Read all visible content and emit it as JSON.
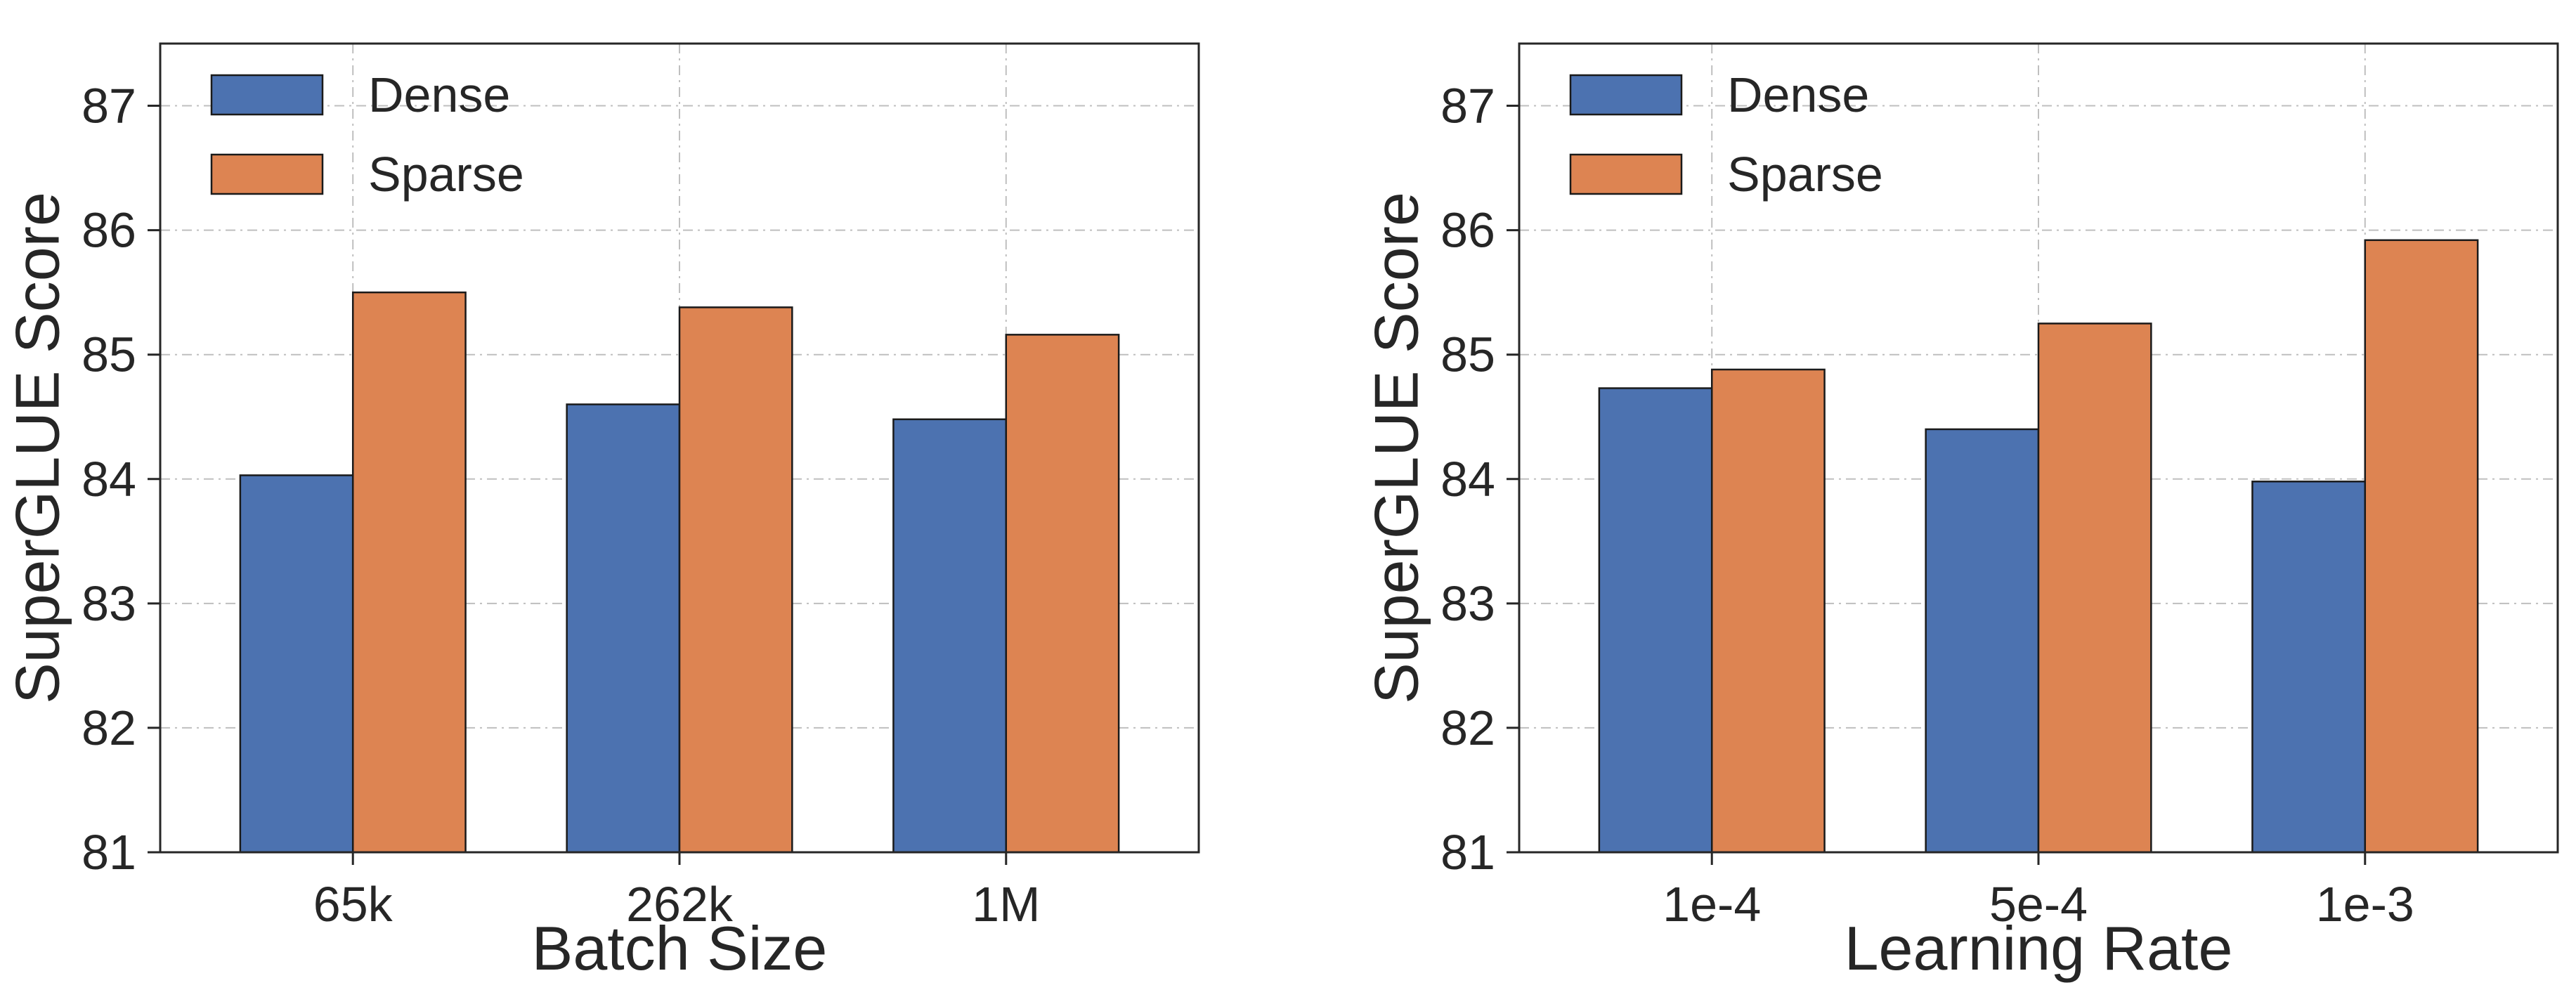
{
  "colors": {
    "dense": "#4c72b0",
    "sparse": "#dd8452",
    "grid": "#bfbfbf",
    "frame": "#262626"
  },
  "chart_data": [
    {
      "type": "bar",
      "title": "",
      "xlabel": "Batch Size",
      "ylabel": "SuperGLUE Score",
      "categories": [
        "65k",
        "262k",
        "1M"
      ],
      "series": [
        {
          "name": "Dense",
          "values": [
            84.03,
            84.6,
            84.48
          ]
        },
        {
          "name": "Sparse",
          "values": [
            85.5,
            85.38,
            85.16
          ]
        }
      ],
      "ylim": [
        81,
        87.5
      ],
      "yticks": [
        "81",
        "82",
        "83",
        "84",
        "85",
        "86",
        "87"
      ],
      "grid": true,
      "legend": "top-left"
    },
    {
      "type": "bar",
      "title": "",
      "xlabel": "Learning Rate",
      "ylabel": "SuperGLUE Score",
      "categories": [
        "1e-4",
        "5e-4",
        "1e-3"
      ],
      "series": [
        {
          "name": "Dense",
          "values": [
            84.73,
            84.4,
            83.98
          ]
        },
        {
          "name": "Sparse",
          "values": [
            84.88,
            85.25,
            85.92
          ]
        }
      ],
      "ylim": [
        81,
        87.5
      ],
      "yticks": [
        "81",
        "82",
        "83",
        "84",
        "85",
        "86",
        "87"
      ],
      "grid": true,
      "legend": "top-left"
    }
  ]
}
